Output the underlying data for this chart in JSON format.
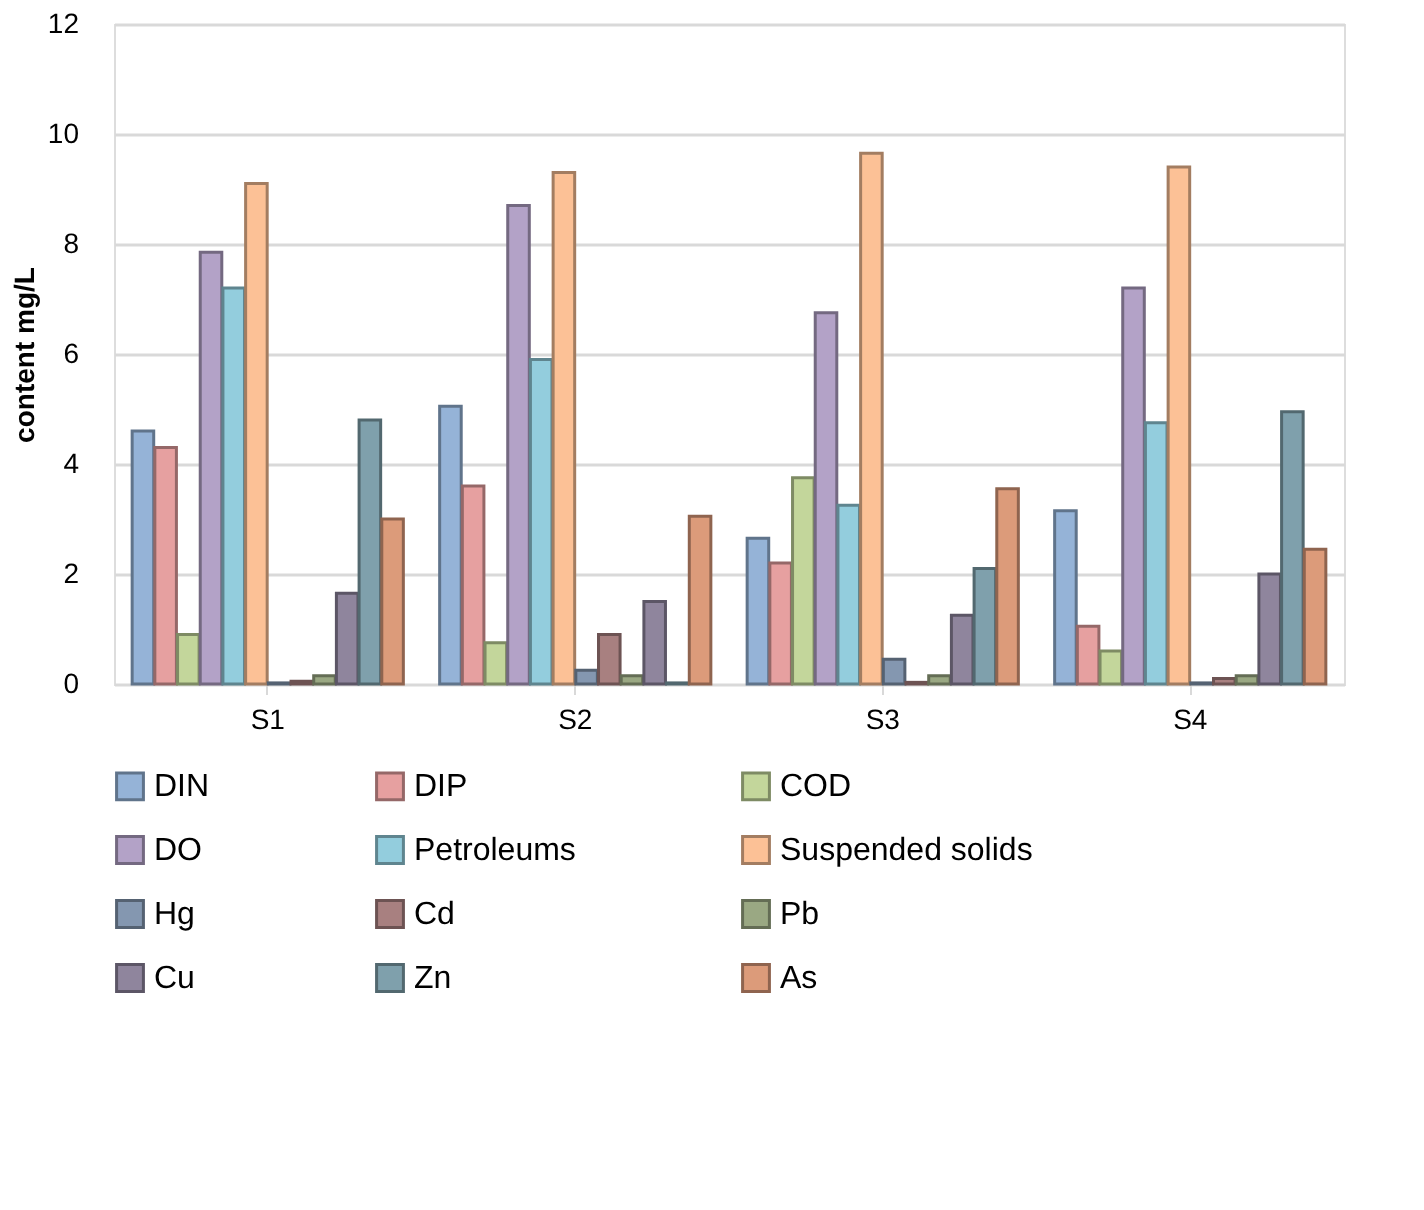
{
  "chart_data": {
    "type": "bar",
    "ylabel": "content mg/L",
    "categories": [
      "S1",
      "S2",
      "S3",
      "S4"
    ],
    "ylim": [
      0,
      12
    ],
    "yticks": [
      0,
      2,
      4,
      6,
      8,
      10,
      12
    ],
    "grid": "y",
    "legend": "bottom",
    "series": [
      {
        "name": "DIN",
        "color": "#95b3d7",
        "values": [
          4.6,
          5.05,
          2.65,
          3.15
        ]
      },
      {
        "name": "DIP",
        "color": "#e6a0a0",
        "values": [
          4.3,
          3.6,
          2.2,
          1.05
        ]
      },
      {
        "name": "COD",
        "color": "#c3d69b",
        "values": [
          0.9,
          0.75,
          3.75,
          0.6
        ]
      },
      {
        "name": "DO",
        "color": "#b3a2c7",
        "values": [
          7.85,
          8.7,
          6.75,
          7.2
        ]
      },
      {
        "name": "Petroleums",
        "color": "#93cddd",
        "values": [
          7.2,
          5.9,
          3.25,
          4.75
        ]
      },
      {
        "name": "Suspended solids",
        "color": "#fcc196",
        "values": [
          9.1,
          9.3,
          9.65,
          9.4
        ]
      },
      {
        "name": "Hg",
        "color": "#8497b0",
        "values": [
          0.02,
          0.25,
          0.45,
          0.02
        ]
      },
      {
        "name": "Cd",
        "color": "#a88080",
        "values": [
          0.05,
          0.9,
          0.03,
          0.1
        ]
      },
      {
        "name": "Pb",
        "color": "#9aa883",
        "values": [
          0.15,
          0.15,
          0.15,
          0.15
        ]
      },
      {
        "name": "Cu",
        "color": "#8f859d",
        "values": [
          1.65,
          1.5,
          1.25,
          2.0
        ]
      },
      {
        "name": "Zn",
        "color": "#7fa0ac",
        "values": [
          4.8,
          0.02,
          2.1,
          4.95
        ]
      },
      {
        "name": "As",
        "color": "#dc9b7a",
        "values": [
          3.0,
          3.05,
          3.55,
          2.45
        ]
      }
    ]
  }
}
